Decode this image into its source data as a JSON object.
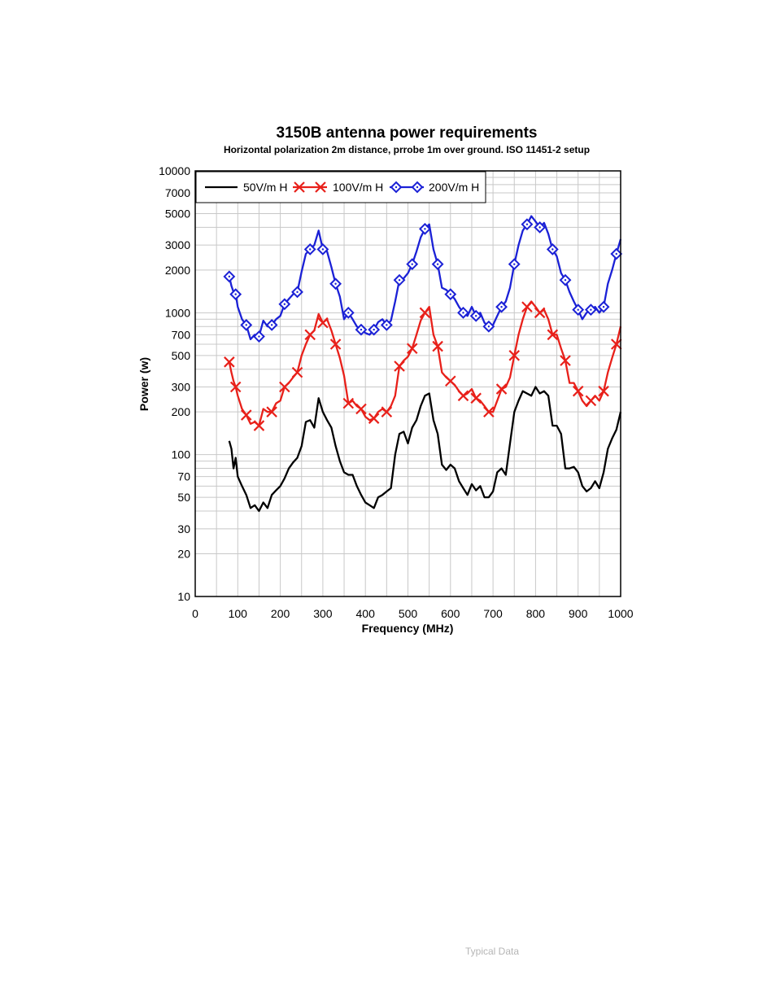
{
  "chart_data": {
    "type": "line",
    "title": "3150B antenna power requirements",
    "subtitle": "Horizontal polarization 2m distance, prrobe 1m over ground. ISO 11451-2 setup",
    "xlabel": "Frequency (MHz)",
    "ylabel": "Power (w)",
    "xlim": [
      0,
      1000
    ],
    "ylim": [
      10,
      10000
    ],
    "yscale": "log",
    "grid": true,
    "legend_position": "top-left",
    "x_ticks": [
      "0",
      "100",
      "200",
      "300",
      "400",
      "500",
      "600",
      "700",
      "800",
      "900",
      "1000"
    ],
    "y_ticks": [
      "10",
      "20",
      "30",
      "50",
      "70",
      "100",
      "200",
      "300",
      "500",
      "700",
      "1000",
      "2000",
      "3000",
      "5000",
      "7000",
      "10000"
    ],
    "series": [
      {
        "name": "50V/m H",
        "color": "#000000",
        "marker": "none",
        "x": [
          80,
          85,
          90,
          95,
          100,
          110,
          120,
          130,
          140,
          150,
          160,
          170,
          180,
          190,
          200,
          210,
          220,
          230,
          240,
          250,
          260,
          270,
          280,
          290,
          300,
          310,
          320,
          330,
          340,
          350,
          360,
          370,
          380,
          390,
          400,
          410,
          420,
          430,
          440,
          450,
          460,
          470,
          480,
          490,
          500,
          510,
          520,
          530,
          540,
          550,
          560,
          570,
          580,
          590,
          600,
          610,
          620,
          630,
          640,
          650,
          660,
          670,
          680,
          690,
          700,
          710,
          720,
          730,
          740,
          750,
          760,
          770,
          780,
          790,
          800,
          810,
          820,
          830,
          840,
          850,
          860,
          870,
          880,
          890,
          900,
          910,
          920,
          930,
          940,
          950,
          960,
          970,
          980,
          990,
          1000
        ],
        "values": [
          125,
          110,
          80,
          95,
          70,
          60,
          52,
          42,
          44,
          40,
          46,
          42,
          52,
          56,
          60,
          68,
          80,
          88,
          95,
          115,
          170,
          175,
          155,
          250,
          200,
          175,
          155,
          115,
          90,
          75,
          72,
          72,
          60,
          52,
          46,
          44,
          42,
          50,
          52,
          55,
          58,
          100,
          140,
          145,
          120,
          155,
          175,
          220,
          260,
          270,
          175,
          140,
          85,
          78,
          85,
          80,
          65,
          58,
          52,
          62,
          56,
          60,
          50,
          50,
          55,
          75,
          80,
          72,
          120,
          200,
          240,
          280,
          270,
          260,
          300,
          270,
          280,
          260,
          160,
          160,
          140,
          80,
          80,
          82,
          75,
          60,
          55,
          58,
          65,
          58,
          75,
          110,
          130,
          150,
          200
        ]
      },
      {
        "name": "100V/m H",
        "color": "#e8201a",
        "marker": "x",
        "x": [
          80,
          85,
          90,
          95,
          100,
          110,
          120,
          130,
          140,
          150,
          160,
          170,
          180,
          190,
          200,
          210,
          220,
          230,
          240,
          250,
          260,
          270,
          280,
          290,
          300,
          310,
          320,
          330,
          340,
          350,
          360,
          370,
          380,
          390,
          400,
          410,
          420,
          430,
          440,
          450,
          460,
          470,
          480,
          490,
          500,
          510,
          520,
          530,
          540,
          550,
          560,
          570,
          580,
          590,
          600,
          610,
          620,
          630,
          640,
          650,
          660,
          670,
          680,
          690,
          700,
          710,
          720,
          730,
          740,
          750,
          760,
          770,
          780,
          790,
          800,
          810,
          820,
          830,
          840,
          850,
          860,
          870,
          880,
          890,
          900,
          910,
          920,
          930,
          940,
          950,
          960,
          970,
          980,
          990,
          1000
        ],
        "values": [
          450,
          380,
          330,
          300,
          260,
          210,
          190,
          165,
          170,
          160,
          210,
          200,
          200,
          230,
          240,
          300,
          320,
          350,
          380,
          500,
          600,
          700,
          750,
          980,
          850,
          900,
          750,
          600,
          480,
          360,
          230,
          240,
          220,
          210,
          185,
          175,
          180,
          200,
          210,
          200,
          220,
          260,
          420,
          460,
          490,
          560,
          700,
          880,
          1000,
          1100,
          700,
          580,
          380,
          350,
          330,
          310,
          280,
          260,
          270,
          290,
          250,
          240,
          220,
          200,
          200,
          240,
          290,
          300,
          350,
          500,
          700,
          900,
          1100,
          1200,
          1100,
          1000,
          1050,
          900,
          700,
          700,
          560,
          460,
          320,
          320,
          280,
          240,
          220,
          240,
          260,
          240,
          280,
          380,
          480,
          600,
          800
        ]
      },
      {
        "name": "200V/m H",
        "color": "#1b21d6",
        "marker": "diamond",
        "x": [
          80,
          85,
          90,
          95,
          100,
          110,
          120,
          130,
          140,
          150,
          160,
          170,
          180,
          190,
          200,
          210,
          220,
          230,
          240,
          250,
          260,
          270,
          280,
          290,
          300,
          310,
          320,
          330,
          340,
          350,
          360,
          370,
          380,
          390,
          400,
          410,
          420,
          430,
          440,
          450,
          460,
          470,
          480,
          490,
          500,
          510,
          520,
          530,
          540,
          550,
          560,
          570,
          580,
          590,
          600,
          610,
          620,
          630,
          640,
          650,
          660,
          670,
          680,
          690,
          700,
          710,
          720,
          730,
          740,
          750,
          760,
          770,
          780,
          790,
          800,
          810,
          820,
          830,
          840,
          850,
          860,
          870,
          880,
          890,
          900,
          910,
          920,
          930,
          940,
          950,
          960,
          970,
          980,
          990,
          1000
        ],
        "values": [
          1800,
          1550,
          1400,
          1350,
          1100,
          900,
          820,
          650,
          700,
          680,
          880,
          800,
          820,
          900,
          950,
          1150,
          1250,
          1350,
          1400,
          1950,
          2600,
          2800,
          3000,
          3800,
          2800,
          2700,
          2100,
          1600,
          1300,
          900,
          1000,
          900,
          800,
          760,
          720,
          700,
          760,
          860,
          900,
          820,
          880,
          1200,
          1700,
          1750,
          1900,
          2200,
          2700,
          3400,
          3900,
          4200,
          2800,
          2200,
          1500,
          1450,
          1350,
          1250,
          1100,
          1000,
          950,
          1100,
          950,
          1000,
          850,
          800,
          820,
          950,
          1100,
          1200,
          1500,
          2200,
          3000,
          3800,
          4200,
          4800,
          4400,
          4000,
          4300,
          3600,
          2800,
          2500,
          1900,
          1700,
          1400,
          1200,
          1050,
          900,
          1000,
          1050,
          1100,
          1000,
          1100,
          1600,
          2000,
          2600,
          3300
        ]
      }
    ]
  },
  "footer": {
    "note": "Typical Data"
  }
}
